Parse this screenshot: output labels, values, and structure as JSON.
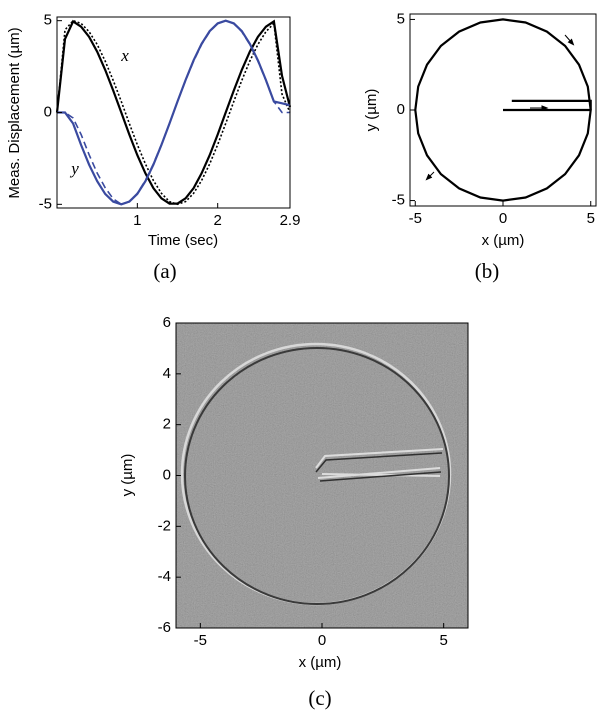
{
  "chart_data": [
    {
      "type": "line",
      "caption": "(a)",
      "xlabel": "Time (sec)",
      "ylabel": "Meas. Displacement (µm)",
      "annotations": [
        "x",
        "y"
      ],
      "xlim": [
        0,
        2.9
      ],
      "ylim": [
        -5.2,
        5.2
      ],
      "xticks": [
        1,
        2,
        2.9
      ],
      "yticks": [
        -5,
        0,
        5
      ],
      "x": [
        0,
        0.1,
        0.2,
        0.3,
        0.4,
        0.5,
        0.6,
        0.7,
        0.8,
        0.9,
        1.0,
        1.1,
        1.2,
        1.3,
        1.4,
        1.5,
        1.6,
        1.7,
        1.8,
        1.9,
        2.0,
        2.1,
        2.2,
        2.3,
        2.4,
        2.5,
        2.6,
        2.7,
        2.8,
        2.9
      ],
      "series": [
        {
          "color": "#000000",
          "dash": "dotted",
          "values": [
            0,
            4.5,
            5,
            4.85,
            4.4,
            3.7,
            2.8,
            1.75,
            0.6,
            -0.6,
            -1.75,
            -2.8,
            -3.7,
            -4.4,
            -4.85,
            -5,
            -4.85,
            -4.4,
            -3.7,
            -2.8,
            -1.75,
            -0.6,
            0.6,
            1.75,
            2.8,
            3.7,
            4.4,
            4.85,
            1.0,
            0.0
          ]
        },
        {
          "color": "#3a4aa0",
          "dash": "dashed",
          "values": [
            0,
            0,
            -0.3,
            -1.2,
            -2.3,
            -3.3,
            -4.1,
            -4.7,
            -5,
            -4.85,
            -4.4,
            -3.7,
            -2.8,
            -1.75,
            -0.6,
            0.6,
            1.75,
            2.8,
            3.7,
            4.4,
            4.85,
            5,
            4.85,
            4.4,
            3.7,
            2.8,
            1.75,
            0.6,
            0.0,
            0.0
          ]
        },
        {
          "color": "#000000",
          "dash": "solid",
          "values": [
            0,
            4.0,
            4.96,
            4.67,
            4.12,
            3.31,
            2.32,
            1.2,
            0,
            -1.2,
            -2.32,
            -3.31,
            -4.12,
            -4.67,
            -4.96,
            -4.96,
            -4.67,
            -4.12,
            -3.31,
            -2.32,
            -1.2,
            0,
            1.2,
            2.32,
            3.31,
            4.12,
            4.67,
            4.96,
            2.0,
            0.3
          ]
        },
        {
          "color": "#3a4aa0",
          "dash": "solid",
          "values": [
            0,
            0,
            -0.6,
            -1.77,
            -2.84,
            -3.74,
            -4.43,
            -4.85,
            -5,
            -4.85,
            -4.43,
            -3.74,
            -2.84,
            -1.77,
            -0.6,
            0.6,
            1.77,
            2.84,
            3.74,
            4.43,
            4.85,
            5,
            4.85,
            4.43,
            3.74,
            2.84,
            1.77,
            0.6,
            0.5,
            0.4
          ]
        }
      ]
    },
    {
      "type": "line",
      "caption": "(b)",
      "xlabel": "x (µm)",
      "ylabel": "y (µm)",
      "xlim": [
        -5.3,
        5.3
      ],
      "ylim": [
        -5.3,
        5.3
      ],
      "xticks": [
        -5,
        0,
        5
      ],
      "yticks": [
        -5,
        0,
        5
      ],
      "x": [
        0,
        2.5,
        5,
        4.83,
        4.33,
        3.54,
        2.5,
        1.29,
        0,
        -1.29,
        -2.5,
        -3.54,
        -4.33,
        -4.83,
        -5,
        -4.83,
        -4.33,
        -3.54,
        -2.5,
        -1.29,
        0,
        1.29,
        2.5,
        3.54,
        4.33,
        4.83,
        5,
        5,
        0.5
      ],
      "series": [
        {
          "color": "#000000",
          "dash": "solid",
          "values": [
            0,
            0,
            0,
            -1.29,
            -2.5,
            -3.54,
            -4.33,
            -4.83,
            -5,
            -4.83,
            -4.33,
            -3.54,
            -2.5,
            -1.29,
            0,
            1.29,
            2.5,
            3.54,
            4.33,
            4.83,
            5,
            4.83,
            4.33,
            3.54,
            2.5,
            1.29,
            0,
            0.5,
            0.5
          ]
        }
      ]
    },
    {
      "type": "image",
      "caption": "(c)",
      "xlabel": "x (µm)",
      "ylabel": "y (µm)",
      "xlim": [
        -6,
        6
      ],
      "ylim": [
        -6,
        6
      ],
      "xticks": [
        -5,
        0,
        5
      ],
      "yticks": [
        -6,
        -4,
        -2,
        0,
        2,
        4,
        6
      ]
    }
  ]
}
